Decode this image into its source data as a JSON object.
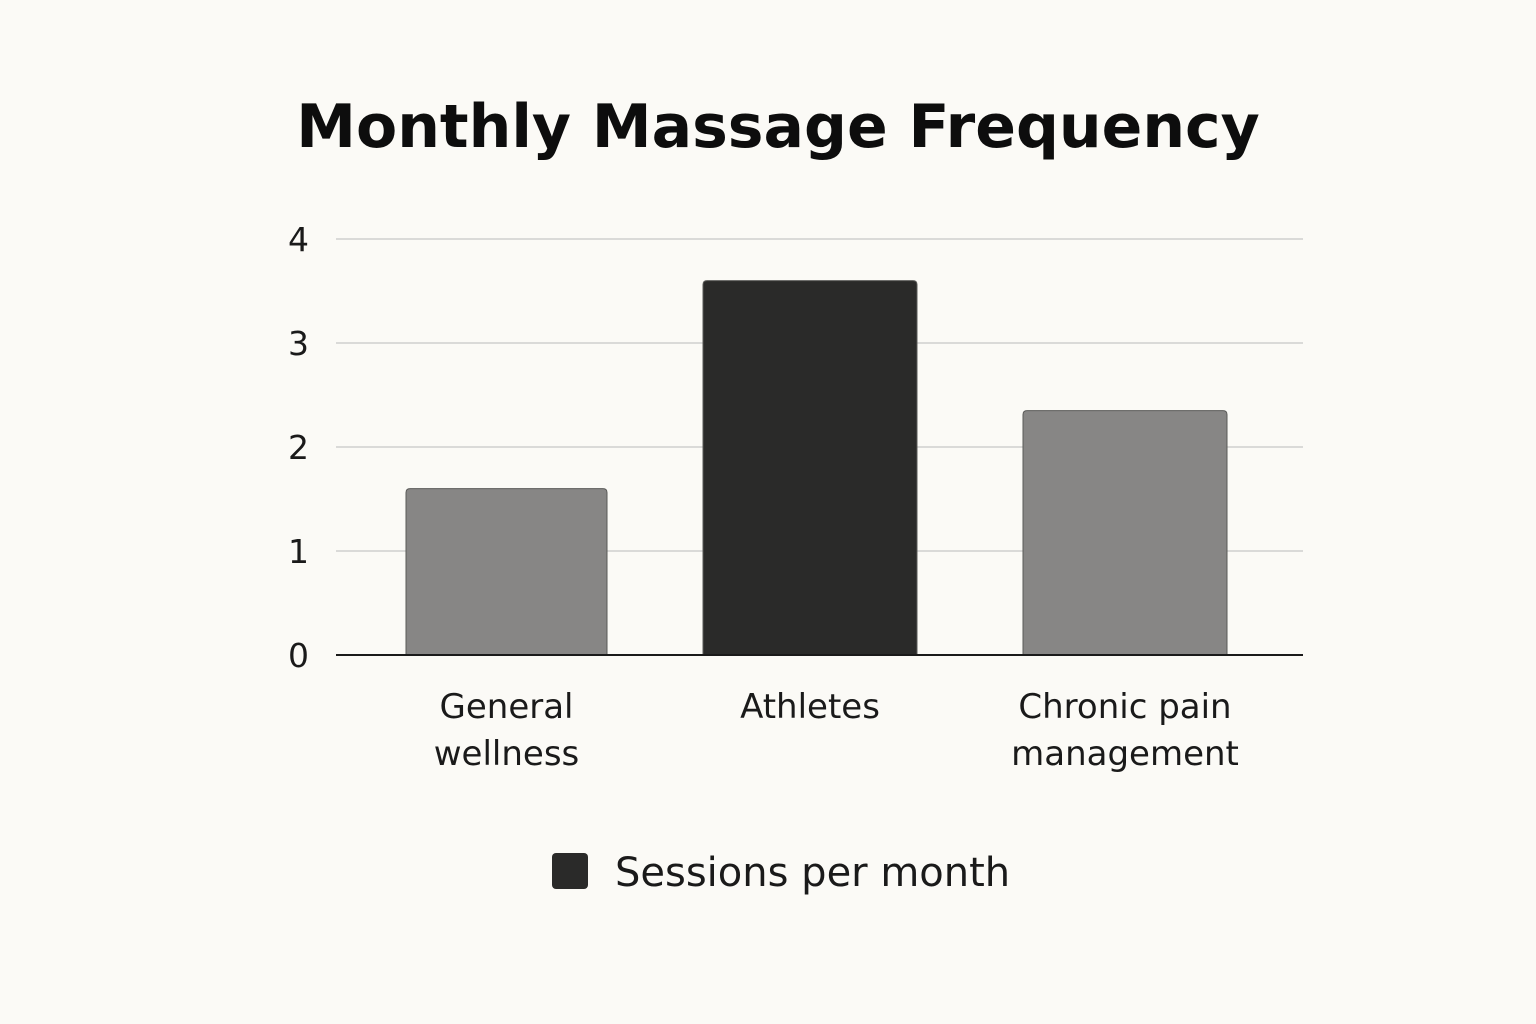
{
  "chart_data": {
    "type": "bar",
    "title": "Monthly Massage Frequency",
    "xlabel": "",
    "ylabel": "",
    "categories": [
      "General wellness",
      "Athletes",
      "Chronic pain management"
    ],
    "category_lines": [
      [
        "General",
        "wellness"
      ],
      [
        "Athletes"
      ],
      [
        "Chronic pain",
        "management"
      ]
    ],
    "series": [
      {
        "name": "Sessions per month",
        "values": [
          1.6,
          3.6,
          2.35
        ]
      }
    ],
    "bar_colors": [
      "#878685",
      "#2a2a29",
      "#878685"
    ],
    "legend_color": "#2a2a29",
    "ylim": [
      0,
      4
    ],
    "yticks": [
      0,
      1,
      2,
      3,
      4
    ],
    "grid": true,
    "legend_position": "bottom"
  }
}
